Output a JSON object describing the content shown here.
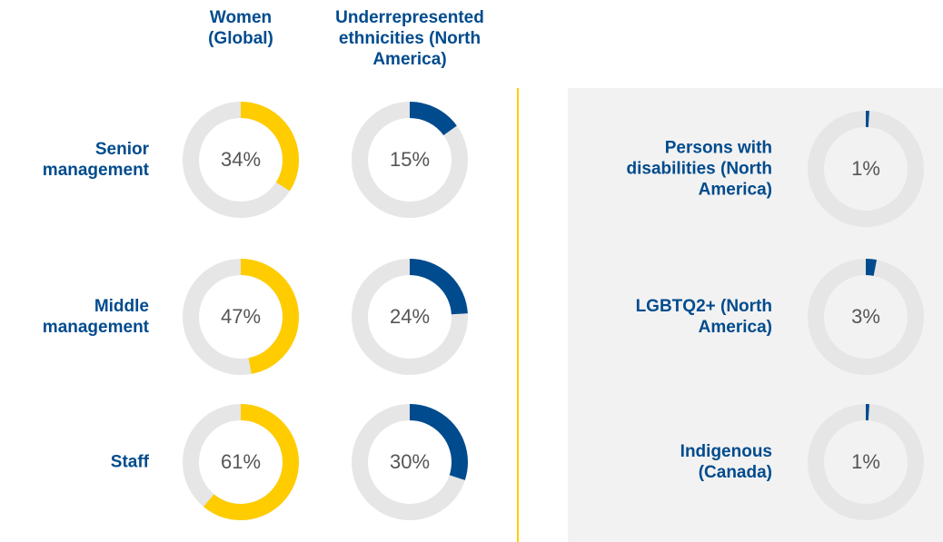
{
  "chart_data": [
    {
      "type": "donut",
      "categories": [
        "Senior management",
        "Middle management",
        "Staff"
      ],
      "ylim": [
        0,
        100
      ],
      "series": [
        {
          "name": "Women (Global)",
          "color": "#ffcc00",
          "values": [
            34,
            47,
            61
          ],
          "value_labels": [
            "34%",
            "47%",
            "61%"
          ]
        },
        {
          "name": "Underrepresented ethnicities (North America)",
          "color": "#004b8d",
          "values": [
            15,
            24,
            30
          ],
          "value_labels": [
            "15%",
            "24%",
            "30%"
          ]
        }
      ]
    },
    {
      "type": "donut",
      "categories": [
        "Persons with disabilities (North America)",
        "LGBTQ2+ (North America)",
        "Indigenous (Canada)"
      ],
      "ylim": [
        0,
        100
      ],
      "series": [
        {
          "color": "#004b8d",
          "values": [
            1,
            3,
            1
          ],
          "value_labels": [
            "1%",
            "3%",
            "1%"
          ]
        }
      ]
    }
  ]
}
